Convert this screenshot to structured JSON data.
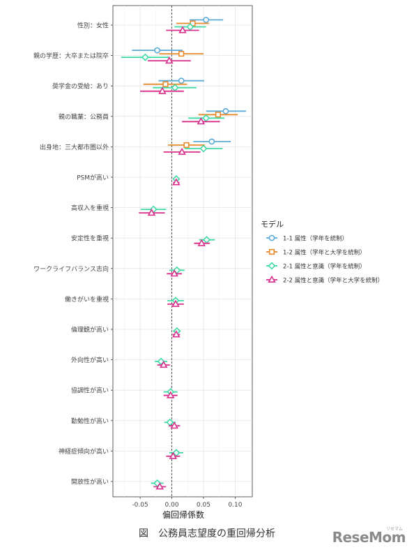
{
  "chart_data": {
    "type": "dot-whisker",
    "xlabel": "偏回帰係数",
    "xlim": [
      -0.093,
      0.127
    ],
    "xticks": [
      -0.05,
      0.0,
      0.05,
      0.1
    ],
    "xtick_labels": [
      "-0.05",
      "0.00",
      "0.05",
      "0.10"
    ],
    "reference_line": 0,
    "grid": true,
    "legend_position": "right",
    "legend_title": "モデル",
    "categories": [
      "性別：女性",
      "親の学歴：大卒または院卒",
      "奨学金の受給：あり",
      "親の職業：公務員",
      "出身地：三大都市圏以外",
      "PSMが高い",
      "高収入を重視",
      "安定性を重視",
      "ワークライフバランス志向",
      "働きがいを重視",
      "倫理観が高い",
      "外向性が高い",
      "協調性が高い",
      "勤勉性が高い",
      "神経症傾向が高い",
      "開放性が高い"
    ],
    "series": [
      {
        "name": "1-1 属性（学年を統制）",
        "color": "#5aaad7",
        "marker": "circle",
        "values": [
          {
            "est": 0.054,
            "lo": 0.028,
            "hi": 0.081
          },
          {
            "est": -0.023,
            "lo": -0.063,
            "hi": 0.017
          },
          {
            "est": 0.015,
            "lo": -0.021,
            "hi": 0.051
          },
          {
            "est": 0.085,
            "lo": 0.054,
            "hi": 0.117
          },
          {
            "est": 0.063,
            "lo": 0.034,
            "hi": 0.093
          },
          null,
          null,
          null,
          null,
          null,
          null,
          null,
          null,
          null,
          null,
          null
        ]
      },
      {
        "name": "1-2 属性（学年と大学を統制）",
        "color": "#e8892a",
        "marker": "square",
        "values": [
          {
            "est": 0.033,
            "lo": 0.007,
            "hi": 0.059
          },
          {
            "est": 0.015,
            "lo": -0.02,
            "hi": 0.05
          },
          {
            "est": -0.01,
            "lo": -0.045,
            "hi": 0.024
          },
          {
            "est": 0.073,
            "lo": 0.042,
            "hi": 0.104
          },
          {
            "est": 0.023,
            "lo": -0.006,
            "hi": 0.052
          },
          null,
          null,
          null,
          null,
          null,
          null,
          null,
          null,
          null,
          null,
          null
        ]
      },
      {
        "name": "2-1 属性と意識（学年を統制）",
        "color": "#3ed9a4",
        "marker": "diamond",
        "values": [
          {
            "est": 0.029,
            "lo": 0.004,
            "hi": 0.054
          },
          {
            "est": -0.042,
            "lo": -0.08,
            "hi": -0.004
          },
          {
            "est": 0.005,
            "lo": -0.03,
            "hi": 0.039
          },
          {
            "est": 0.054,
            "lo": 0.026,
            "hi": 0.083
          },
          {
            "est": 0.05,
            "lo": 0.02,
            "hi": 0.08
          },
          {
            "est": 0.007,
            "lo": 0.002,
            "hi": 0.012
          },
          {
            "est": -0.029,
            "lo": -0.049,
            "hi": -0.009
          },
          {
            "est": 0.055,
            "lo": 0.043,
            "hi": 0.068
          },
          {
            "est": 0.008,
            "lo": -0.004,
            "hi": 0.02
          },
          {
            "est": 0.006,
            "lo": -0.007,
            "hi": 0.019
          },
          {
            "est": 0.008,
            "lo": 0.002,
            "hi": 0.014
          },
          {
            "est": -0.017,
            "lo": -0.027,
            "hi": -0.007
          },
          {
            "est": -0.002,
            "lo": -0.013,
            "hi": 0.009
          },
          {
            "est": -0.003,
            "lo": -0.012,
            "hi": 0.006
          },
          {
            "est": 0.007,
            "lo": -0.004,
            "hi": 0.018
          },
          {
            "est": -0.023,
            "lo": -0.033,
            "hi": -0.013
          }
        ]
      },
      {
        "name": "2-2 属性と意識（学年と大学を統制）",
        "color": "#d82f8c",
        "marker": "triangle",
        "values": [
          {
            "est": 0.017,
            "lo": -0.009,
            "hi": 0.043
          },
          {
            "est": -0.004,
            "lo": -0.038,
            "hi": 0.03
          },
          {
            "est": -0.015,
            "lo": -0.05,
            "hi": 0.019
          },
          {
            "est": 0.046,
            "lo": 0.016,
            "hi": 0.076
          },
          {
            "est": 0.016,
            "lo": -0.013,
            "hi": 0.045
          },
          {
            "est": 0.007,
            "lo": 0.002,
            "hi": 0.012
          },
          {
            "est": -0.032,
            "lo": -0.052,
            "hi": -0.011
          },
          {
            "est": 0.047,
            "lo": 0.035,
            "hi": 0.06
          },
          {
            "est": 0.004,
            "lo": -0.008,
            "hi": 0.016
          },
          {
            "est": 0.006,
            "lo": -0.007,
            "hi": 0.019
          },
          {
            "est": 0.007,
            "lo": 0.001,
            "hi": 0.013
          },
          {
            "est": -0.013,
            "lo": -0.023,
            "hi": -0.003
          },
          {
            "est": -0.002,
            "lo": -0.013,
            "hi": 0.009
          },
          {
            "est": 0.004,
            "lo": -0.005,
            "hi": 0.013
          },
          {
            "est": 0.002,
            "lo": -0.009,
            "hi": 0.013
          },
          {
            "est": -0.019,
            "lo": -0.029,
            "hi": -0.009
          }
        ]
      }
    ]
  },
  "caption": "図　公務員志望度の重回帰分析",
  "watermark": "ReseMom",
  "watermark_sub": "リセマム"
}
